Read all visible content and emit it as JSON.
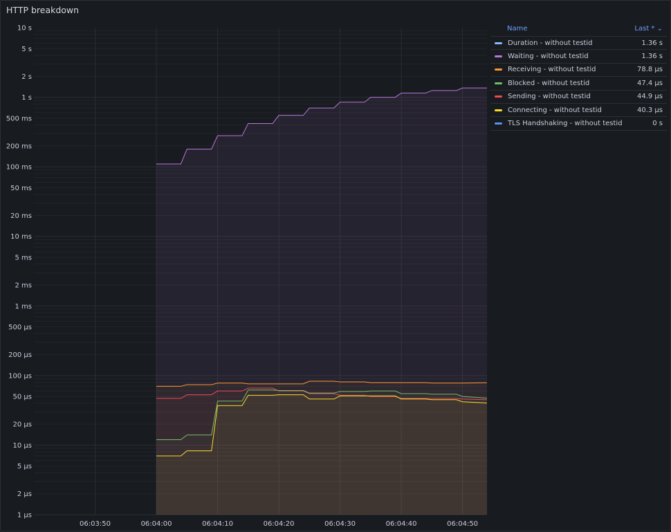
{
  "panel": {
    "title": "HTTP breakdown"
  },
  "legend": {
    "name_header": "Name",
    "last_header": "Last * ⌄"
  },
  "chart_data": {
    "type": "line",
    "title": "HTTP breakdown",
    "yscale": "log",
    "y_unit": "seconds",
    "ylim": [
      1e-06,
      10
    ],
    "y_ticks": [
      {
        "v": 10,
        "label": "10 s"
      },
      {
        "v": 5,
        "label": "5 s"
      },
      {
        "v": 2,
        "label": "2 s"
      },
      {
        "v": 1,
        "label": "1 s"
      },
      {
        "v": 0.5,
        "label": "500 ms"
      },
      {
        "v": 0.2,
        "label": "200 ms"
      },
      {
        "v": 0.1,
        "label": "100 ms"
      },
      {
        "v": 0.05,
        "label": "50 ms"
      },
      {
        "v": 0.02,
        "label": "20 ms"
      },
      {
        "v": 0.01,
        "label": "10 ms"
      },
      {
        "v": 0.005,
        "label": "5 ms"
      },
      {
        "v": 0.002,
        "label": "2 ms"
      },
      {
        "v": 0.001,
        "label": "1 ms"
      },
      {
        "v": 0.0005,
        "label": "500 µs"
      },
      {
        "v": 0.0002,
        "label": "200 µs"
      },
      {
        "v": 0.0001,
        "label": "100 µs"
      },
      {
        "v": 5e-05,
        "label": "50 µs"
      },
      {
        "v": 2e-05,
        "label": "20 µs"
      },
      {
        "v": 1e-05,
        "label": "10 µs"
      },
      {
        "v": 5e-06,
        "label": "5 µs"
      },
      {
        "v": 2e-06,
        "label": "2 µs"
      },
      {
        "v": 1e-06,
        "label": "1 µs"
      }
    ],
    "xlim": [
      "06:03:40",
      "06:04:54"
    ],
    "x_ticks": [
      "06:03:50",
      "06:04:00",
      "06:04:10",
      "06:04:20",
      "06:04:30",
      "06:04:40",
      "06:04:50"
    ],
    "legend_placement": "right",
    "grid": true,
    "x": [
      "06:04:00",
      "06:04:04",
      "06:04:05",
      "06:04:09",
      "06:04:10",
      "06:04:14",
      "06:04:15",
      "06:04:19",
      "06:04:20",
      "06:04:24",
      "06:04:25",
      "06:04:29",
      "06:04:30",
      "06:04:34",
      "06:04:35",
      "06:04:39",
      "06:04:40",
      "06:04:44",
      "06:04:45",
      "06:04:49",
      "06:04:50",
      "06:04:54"
    ],
    "series": [
      {
        "name": "Duration - without testid",
        "color": "#8ab8ff",
        "last": "1.36 s",
        "visible": false,
        "values": [
          0.11,
          0.11,
          0.18,
          0.18,
          0.28,
          0.28,
          0.42,
          0.42,
          0.55,
          0.55,
          0.7,
          0.7,
          0.85,
          0.85,
          1.0,
          1.0,
          1.15,
          1.15,
          1.25,
          1.25,
          1.36,
          1.36
        ]
      },
      {
        "name": "Waiting - without testid",
        "color": "#b877d9",
        "last": "1.36 s",
        "visible": true,
        "fill": true,
        "values": [
          0.11,
          0.11,
          0.18,
          0.18,
          0.28,
          0.28,
          0.42,
          0.42,
          0.55,
          0.55,
          0.7,
          0.7,
          0.85,
          0.85,
          1.0,
          1.0,
          1.15,
          1.15,
          1.25,
          1.25,
          1.36,
          1.36
        ]
      },
      {
        "name": "Receiving - without testid",
        "color": "#ff9830",
        "last": "78.8 µs",
        "visible": true,
        "values": [
          7e-05,
          7e-05,
          7.4e-05,
          7.4e-05,
          7.8e-05,
          7.8e-05,
          7.6e-05,
          7.6e-05,
          7.6e-05,
          7.6e-05,
          8.3e-05,
          8.3e-05,
          8.1e-05,
          8.1e-05,
          7.9e-05,
          7.9e-05,
          7.9e-05,
          7.9e-05,
          7.8e-05,
          7.8e-05,
          7.8e-05,
          7.88e-05
        ]
      },
      {
        "name": "Blocked - without testid",
        "color": "#73bf69",
        "last": "47.4 µs",
        "visible": true,
        "values": [
          1.2e-05,
          1.2e-05,
          1.4e-05,
          1.4e-05,
          4.3e-05,
          4.3e-05,
          6.2e-05,
          6.2e-05,
          6.1e-05,
          6.1e-05,
          5.6e-05,
          5.6e-05,
          5.9e-05,
          5.9e-05,
          6e-05,
          6e-05,
          5.5e-05,
          5.5e-05,
          5.4e-05,
          5.4e-05,
          5e-05,
          4.74e-05
        ]
      },
      {
        "name": "Sending - without testid",
        "color": "#f2495c",
        "last": "44.9 µs",
        "visible": true,
        "values": [
          4.7e-05,
          4.7e-05,
          5.3e-05,
          5.3e-05,
          6e-05,
          6e-05,
          6.6e-05,
          6.6e-05,
          6e-05,
          6e-05,
          5.5e-05,
          5.5e-05,
          5.2e-05,
          5.2e-05,
          5e-05,
          5e-05,
          4.7e-05,
          4.7e-05,
          4.7e-05,
          4.7e-05,
          4.6e-05,
          4.49e-05
        ]
      },
      {
        "name": "Connecting - without testid",
        "color": "#fade2a",
        "last": "40.3 µs",
        "visible": true,
        "values": [
          7e-06,
          7e-06,
          8.3e-06,
          8.3e-06,
          3.7e-05,
          3.7e-05,
          5.2e-05,
          5.2e-05,
          5.3e-05,
          5.3e-05,
          4.6e-05,
          4.6e-05,
          5.1e-05,
          5.1e-05,
          5.1e-05,
          5.1e-05,
          4.6e-05,
          4.6e-05,
          4.5e-05,
          4.5e-05,
          4.2e-05,
          4.03e-05
        ]
      },
      {
        "name": "TLS Handshaking - without testid",
        "color": "#5794f2",
        "last": "0 s",
        "visible": false,
        "values": [
          0,
          0,
          0,
          0,
          0,
          0,
          0,
          0,
          0,
          0,
          0,
          0,
          0,
          0,
          0,
          0,
          0,
          0,
          0,
          0,
          0,
          0
        ]
      }
    ]
  }
}
